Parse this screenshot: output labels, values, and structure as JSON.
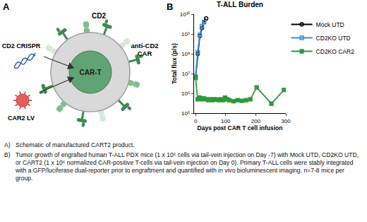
{
  "figure": {
    "panel_labels": [
      "A",
      "B"
    ]
  },
  "schematic": {
    "cd2": "CD2",
    "crispr": "CD2 CRISPR",
    "car": "anti-CD2 CAR",
    "cart": "CAR-T",
    "lv": "CAR2 LV"
  },
  "chart_data": {
    "type": "line",
    "title": "T-ALL Burden",
    "x_label": "Days post CAR T cell infusion",
    "y_label": "Total flux (p/s)",
    "log": "y",
    "grid": false,
    "legend": "top-right",
    "xlim": [
      -5,
      300
    ],
    "xticks": [
      0,
      100,
      200,
      300
    ],
    "ylim": [
      100000,
      10000000000
    ],
    "yticks": [
      {
        "value": 100000,
        "label": "10⁵"
      },
      {
        "value": 1000000,
        "label": "10⁶"
      },
      {
        "value": 10000000,
        "label": "10⁷"
      },
      {
        "value": 100000000,
        "label": "10⁸"
      },
      {
        "value": 1000000000,
        "label": "10⁹"
      },
      {
        "value": 10000000000,
        "label": "10¹⁰"
      }
    ],
    "series": [
      {
        "name": "Mock UTD",
        "color": "#000000",
        "marker": "circle-open",
        "line_style": "solid",
        "x": [
          0,
          7,
          14,
          21,
          28,
          35
        ],
        "values": [
          7000000,
          100000000,
          800000000,
          2000000000,
          4000000000,
          6000000000
        ]
      },
      {
        "name": "CD2KO UTD",
        "color": "#3a8fd6",
        "marker": "square-open",
        "line_style": "solid",
        "x": [
          0,
          7,
          14,
          21,
          28
        ],
        "values": [
          7000000,
          120000000,
          900000000,
          2500000000,
          4000000000
        ]
      },
      {
        "name": "CD2KO CAR2",
        "color": "#2e9a3a",
        "marker": "square",
        "line_style": "solid",
        "x": [
          0,
          7,
          14,
          21,
          28,
          35,
          42,
          49,
          56,
          63,
          70,
          77,
          84,
          91,
          98,
          105,
          112,
          126,
          140,
          154,
          168,
          182,
          203,
          252,
          294
        ],
        "values": [
          6000000,
          500000,
          600000,
          500000,
          550000,
          500000,
          450000,
          500000,
          450000,
          500000,
          480000,
          450000,
          500000,
          450000,
          600000,
          500000,
          450000,
          400000,
          450000,
          420000,
          450000,
          500000,
          2000000,
          300000,
          1500000
        ]
      }
    ]
  },
  "caption": [
    {
      "label": "A)",
      "text": "Schematic of manufactured CART2 product."
    },
    {
      "label": "B)",
      "text": "Tumor growth of engrafted human T-ALL PDX mice (1 x 10⁶ cells via tail-vein injection on Day -7) with Mock UTD, CD2KO UTD, or CART2 (1 x 10⁶ normalized CAR-positive T-cells via tail-vein injection on Day 0). Primary T-ALL cells were stably integrated with a GFP/luciferase dual-reporter prior to engraftment and quantified with in vivo bioluminescent imaging. n=7-8 mice per group."
    }
  ]
}
